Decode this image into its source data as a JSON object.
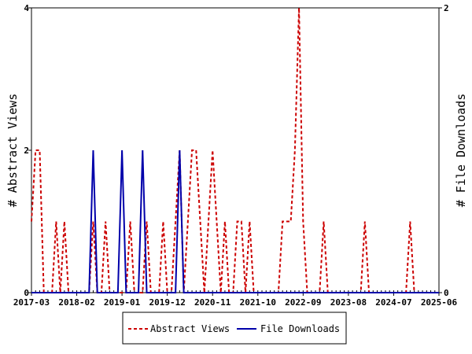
{
  "chart_data": {
    "type": "line",
    "x_tick_labels": [
      "2017-03",
      "2018-02",
      "2019-01",
      "2019-12",
      "2020-11",
      "2021-10",
      "2022-09",
      "2023-08",
      "2024-07",
      "2025-06"
    ],
    "y_left": {
      "label": "# Abstract Views",
      "ylim": [
        0,
        4
      ],
      "ticks": [
        "0",
        "2",
        "4"
      ]
    },
    "y_right": {
      "label": "# File Downloads",
      "ylim": [
        0,
        2
      ],
      "ticks": [
        "0",
        "2"
      ]
    },
    "x_range_months": [
      0,
      99
    ],
    "grid": false,
    "legend_position": "bottom-center",
    "series": [
      {
        "name": "Abstract Views",
        "axis": "left",
        "color": "#cc0000",
        "style": "dashed",
        "points": [
          [
            0,
            1
          ],
          [
            1,
            2
          ],
          [
            2,
            2
          ],
          [
            3,
            0
          ],
          [
            4,
            0
          ],
          [
            5,
            0
          ],
          [
            6,
            1
          ],
          [
            7,
            0
          ],
          [
            8,
            1
          ],
          [
            9,
            0
          ],
          [
            10,
            0
          ],
          [
            11,
            0
          ],
          [
            12,
            0
          ],
          [
            13,
            0
          ],
          [
            14,
            0
          ],
          [
            15,
            1
          ],
          [
            16,
            0
          ],
          [
            17,
            0
          ],
          [
            18,
            1
          ],
          [
            19,
            0
          ],
          [
            20,
            0
          ],
          [
            21,
            0
          ],
          [
            22,
            0
          ],
          [
            23,
            0
          ],
          [
            24,
            1
          ],
          [
            25,
            0
          ],
          [
            26,
            0
          ],
          [
            27,
            0
          ],
          [
            28,
            1
          ],
          [
            29,
            0
          ],
          [
            30,
            0
          ],
          [
            31,
            0
          ],
          [
            32,
            1
          ],
          [
            33,
            0
          ],
          [
            34,
            0
          ],
          [
            35,
            1
          ],
          [
            36,
            2
          ],
          [
            37,
            0
          ],
          [
            38,
            1
          ],
          [
            39,
            2
          ],
          [
            40,
            2
          ],
          [
            41,
            1
          ],
          [
            42,
            0
          ],
          [
            43,
            1
          ],
          [
            44,
            2
          ],
          [
            45,
            1
          ],
          [
            46,
            0
          ],
          [
            47,
            1
          ],
          [
            48,
            0
          ],
          [
            49,
            0
          ],
          [
            50,
            1
          ],
          [
            51,
            1
          ],
          [
            52,
            0
          ],
          [
            53,
            1
          ],
          [
            54,
            0
          ],
          [
            55,
            0
          ],
          [
            56,
            0
          ],
          [
            57,
            0
          ],
          [
            58,
            0
          ],
          [
            59,
            0
          ],
          [
            60,
            0
          ],
          [
            61,
            1
          ],
          [
            62,
            1
          ],
          [
            63,
            1
          ],
          [
            64,
            2
          ],
          [
            65,
            4
          ],
          [
            66,
            1
          ],
          [
            67,
            0
          ],
          [
            68,
            0
          ],
          [
            69,
            0
          ],
          [
            70,
            0
          ],
          [
            71,
            1
          ],
          [
            72,
            0
          ],
          [
            73,
            0
          ],
          [
            74,
            0
          ],
          [
            75,
            0
          ],
          [
            76,
            0
          ],
          [
            77,
            0
          ],
          [
            78,
            0
          ],
          [
            79,
            0
          ],
          [
            80,
            0
          ],
          [
            81,
            1
          ],
          [
            82,
            0
          ],
          [
            83,
            0
          ],
          [
            84,
            0
          ],
          [
            85,
            0
          ],
          [
            86,
            0
          ],
          [
            87,
            0
          ],
          [
            88,
            0
          ],
          [
            89,
            0
          ],
          [
            90,
            0
          ],
          [
            91,
            0
          ],
          [
            92,
            1
          ],
          [
            93,
            0
          ],
          [
            94,
            0
          ],
          [
            95,
            0
          ],
          [
            96,
            0
          ],
          [
            97,
            0
          ],
          [
            98,
            0
          ],
          [
            99,
            0
          ]
        ]
      },
      {
        "name": "File Downloads",
        "axis": "right",
        "color": "#0000aa",
        "style": "solid",
        "points": [
          [
            0,
            0
          ],
          [
            14,
            0
          ],
          [
            15,
            1
          ],
          [
            16,
            0
          ],
          [
            21,
            0
          ],
          [
            22,
            1
          ],
          [
            23,
            0
          ],
          [
            26,
            0
          ],
          [
            27,
            1
          ],
          [
            28,
            0
          ],
          [
            35,
            0
          ],
          [
            36,
            1
          ],
          [
            37,
            0
          ],
          [
            99,
            0
          ]
        ]
      }
    ]
  }
}
